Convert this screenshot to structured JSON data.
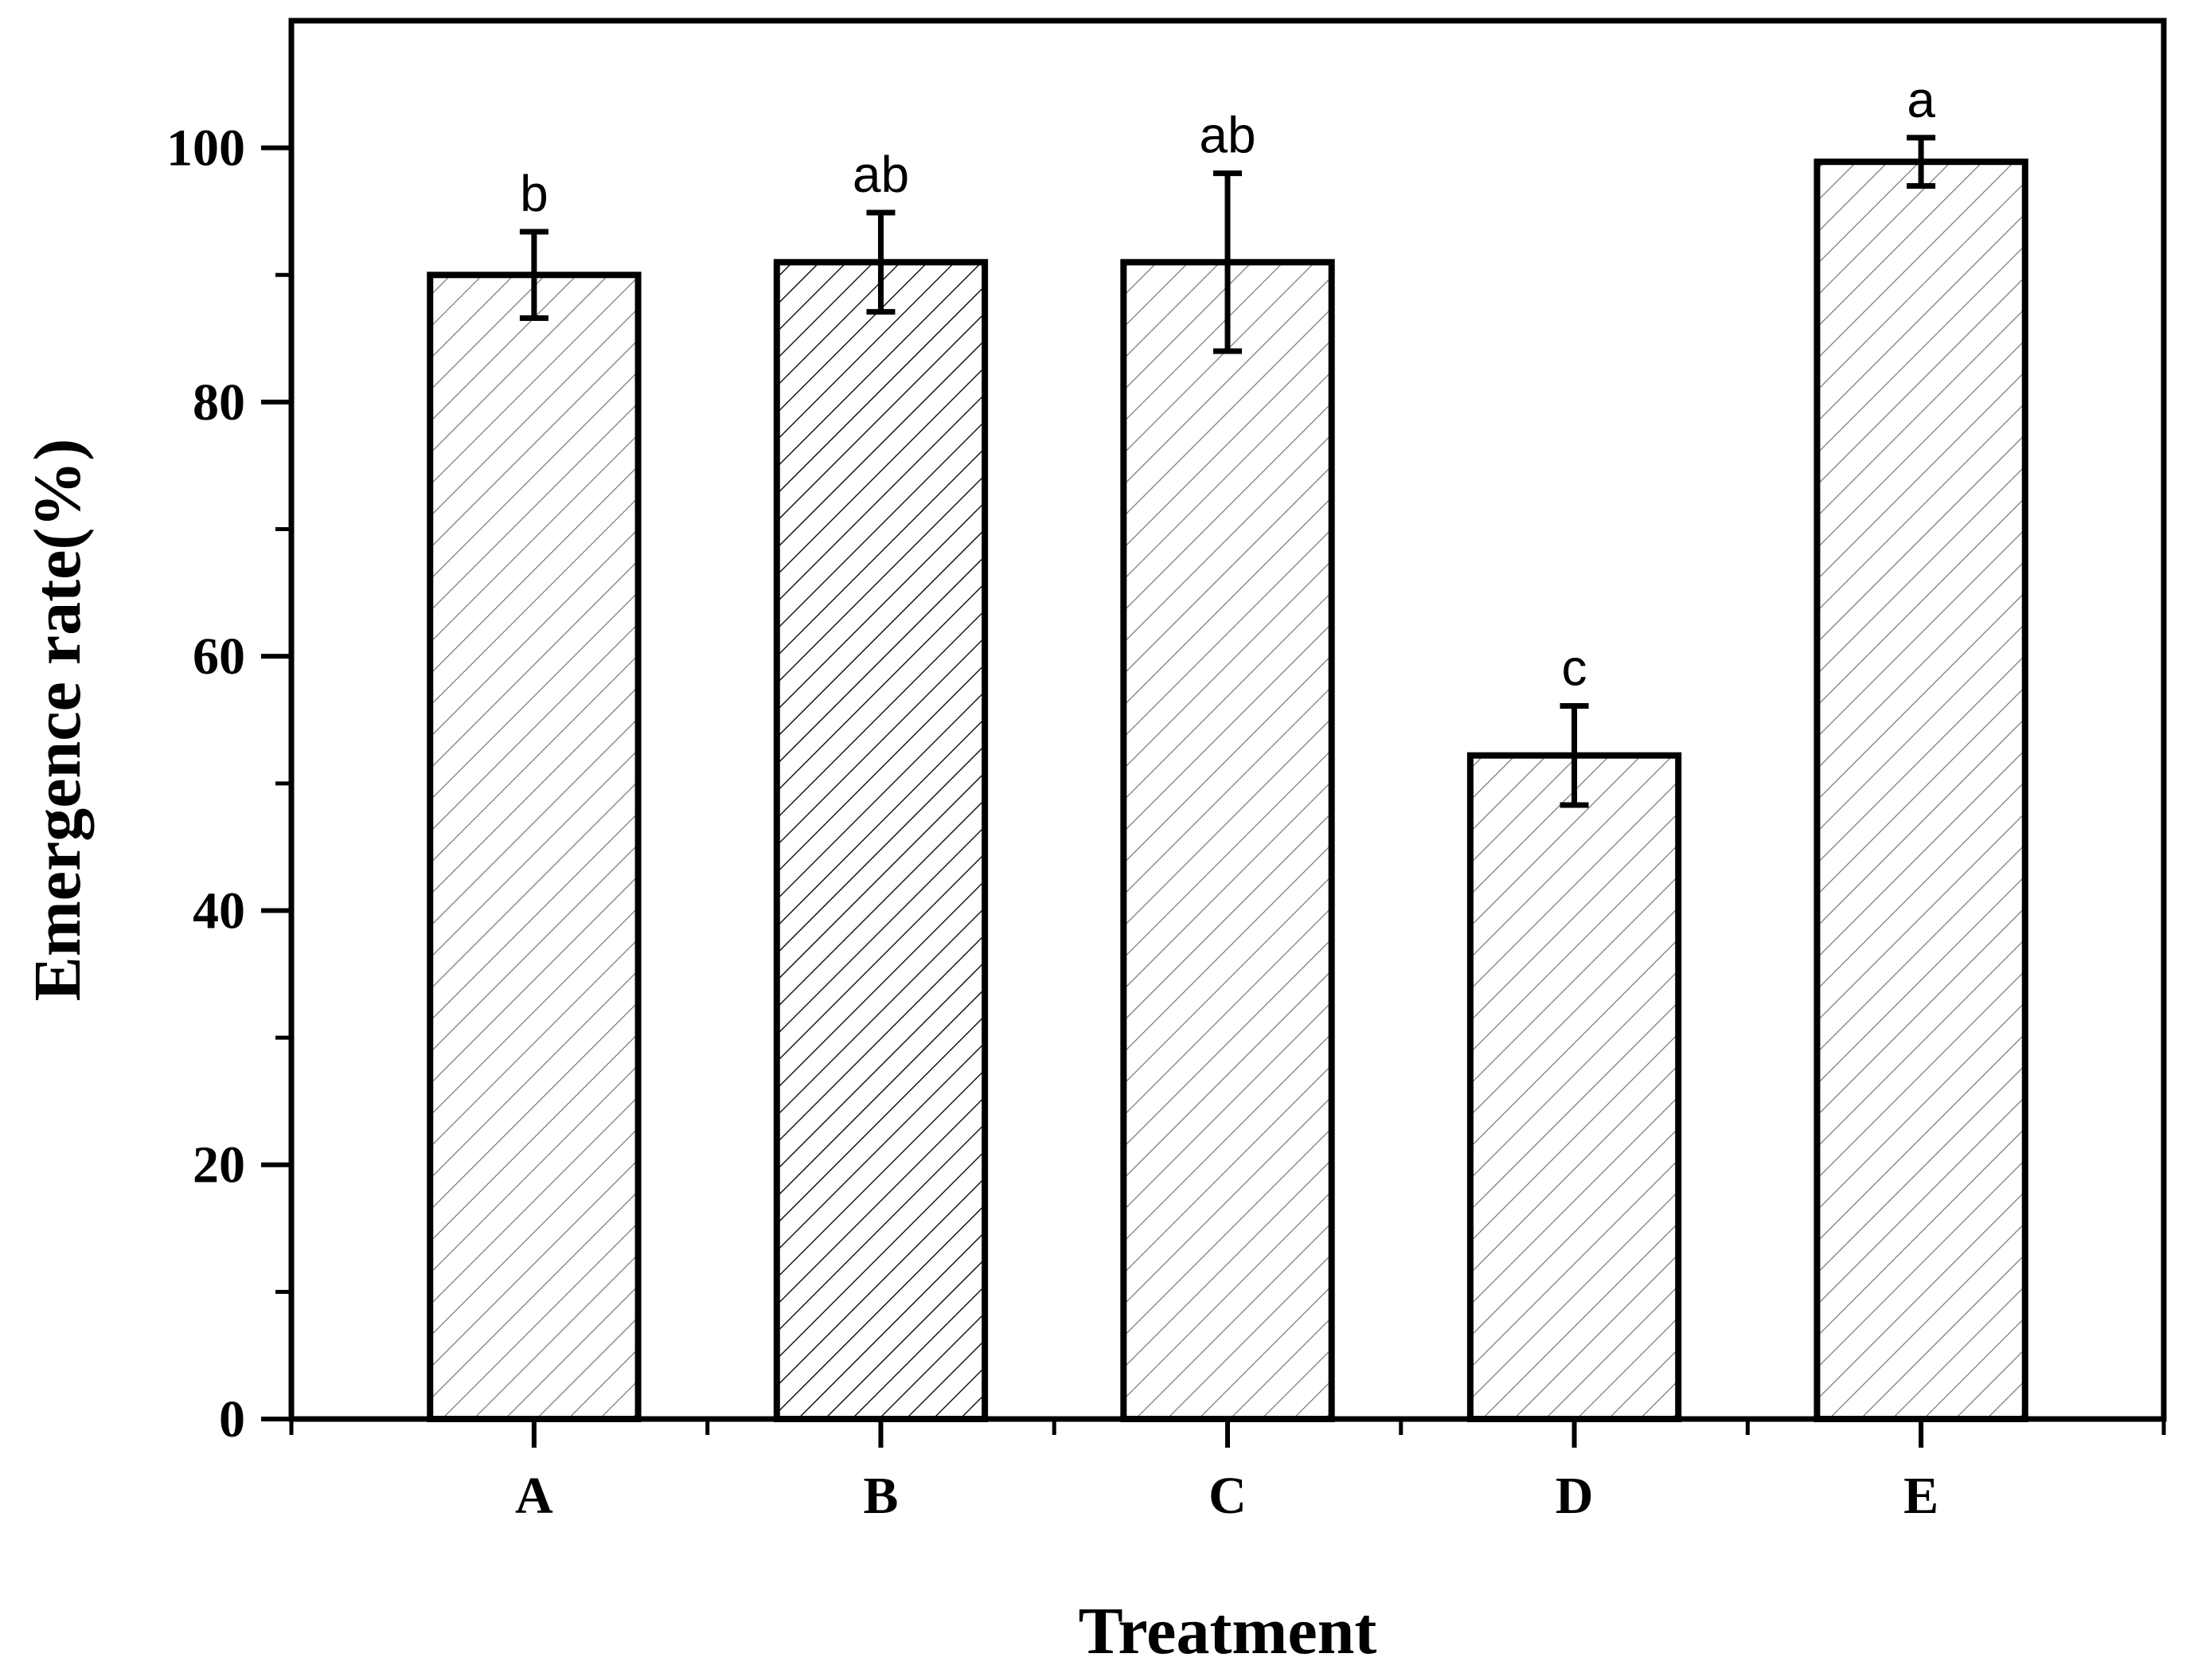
{
  "chart_data": {
    "type": "bar",
    "title": "",
    "xlabel": "Treatment",
    "ylabel": "Emergence rate(%)",
    "categories": [
      "A",
      "B",
      "C",
      "D",
      "E"
    ],
    "values": [
      90,
      91,
      91,
      52.2,
      98.9
    ],
    "errors": [
      3.4,
      3.9,
      7,
      3.9,
      1.9
    ],
    "significance": [
      "b",
      "ab",
      "ab",
      "c",
      "a"
    ],
    "ylim": [
      0,
      110
    ],
    "yticks": [
      0,
      20,
      40,
      60,
      80,
      100
    ],
    "grid": false,
    "legend": "none"
  }
}
